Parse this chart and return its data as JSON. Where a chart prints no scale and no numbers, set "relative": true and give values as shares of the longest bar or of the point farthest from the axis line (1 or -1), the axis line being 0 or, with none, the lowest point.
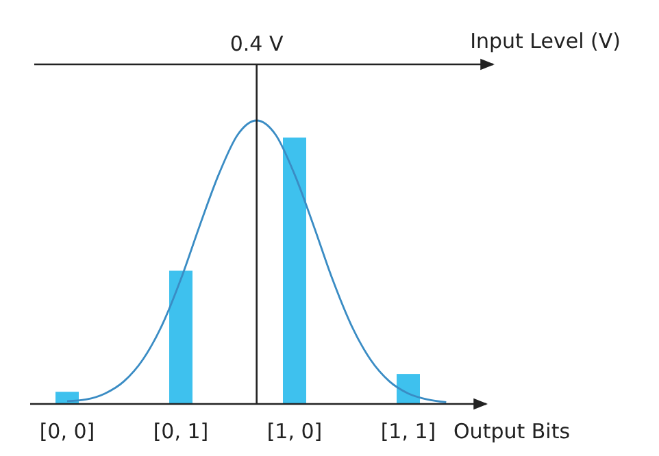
{
  "chart_data": {
    "type": "bar",
    "relative": true,
    "categories": [
      "[0, 0]",
      null,
      null,
      null,
      null,
      null,
      "[0, 1]",
      null,
      null,
      null,
      null,
      null,
      "[1, 0]",
      null,
      null,
      null,
      null,
      null,
      "[1, 1]",
      null,
      null
    ],
    "xlabel": "Output Bits",
    "x2label": "Input Level (V)",
    "series": [
      {
        "color": "#3ec1ee",
        "values": [
          0.043,
          null,
          null,
          null,
          null,
          null,
          0.47,
          null,
          null,
          null,
          null,
          null,
          0.94,
          null,
          null,
          null,
          null,
          null,
          0.106,
          null,
          null
        ]
      },
      {
        "type": "line",
        "color": "#3a8cc4",
        "values": [
          0.01,
          0.016,
          0.037,
          0.08,
          0.157,
          0.277,
          0.44,
          0.63,
          0.81,
          0.95,
          1,
          0.95,
          0.81,
          0.63,
          0.44,
          0.277,
          0.157,
          0.08,
          0.037,
          0.016,
          0.006
        ]
      }
    ],
    "annotations": [
      "0.4 V"
    ]
  }
}
